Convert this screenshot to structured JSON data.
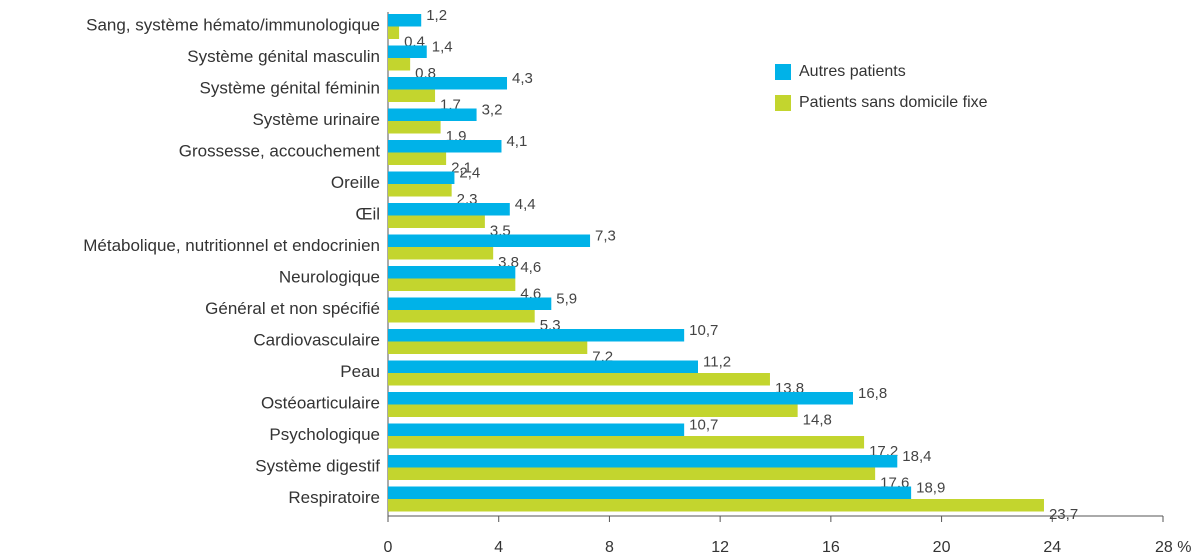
{
  "chart_data": {
    "type": "bar",
    "orientation": "horizontal",
    "categories": [
      "Sang, système hémato/immunologique",
      "Système génital masculin",
      "Système génital féminin",
      "Système urinaire",
      "Grossesse, accouchement",
      "Oreille",
      "Œil",
      "Métabolique, nutritionnel et endocrinien",
      "Neurologique",
      "Général et non spécifié",
      "Cardiovasculaire",
      "Peau",
      "Ostéoarticulaire",
      "Psychologique",
      "Système digestif",
      "Respiratoire"
    ],
    "series": [
      {
        "name": "Autres patients",
        "color": "#00b2e8",
        "values": [
          1.2,
          1.4,
          4.3,
          3.2,
          4.1,
          2.4,
          4.4,
          7.3,
          4.6,
          5.9,
          10.7,
          11.2,
          16.8,
          10.7,
          18.4,
          18.9
        ],
        "value_labels": [
          "1,2",
          "1,4",
          "4,3",
          "3,2",
          "4,1",
          "2,4",
          "4,4",
          "7,3",
          "4,6",
          "5,9",
          "10,7",
          "11,2",
          "16,8",
          "10,7",
          "18,4",
          "18,9"
        ]
      },
      {
        "name": "Patients sans domicile fixe",
        "color": "#c3d52e",
        "values": [
          0.4,
          0.8,
          1.7,
          1.9,
          2.1,
          2.3,
          3.5,
          3.8,
          4.6,
          5.3,
          7.2,
          13.8,
          14.8,
          17.2,
          17.6,
          23.7
        ],
        "value_labels": [
          "0,4",
          "0,8",
          "1,7",
          "1,9",
          "2,1",
          "2,3",
          "3,5",
          "3,8",
          "4,6",
          "5,3",
          "7,2",
          "13,8",
          "14,8",
          "17,2",
          "17,6",
          "23,7"
        ]
      }
    ],
    "xlim": [
      0,
      28
    ],
    "xticks": [
      0,
      4,
      8,
      12,
      16,
      20,
      24,
      {
        "value": 28,
        "label": "28 %"
      }
    ],
    "legend": "upper right"
  }
}
